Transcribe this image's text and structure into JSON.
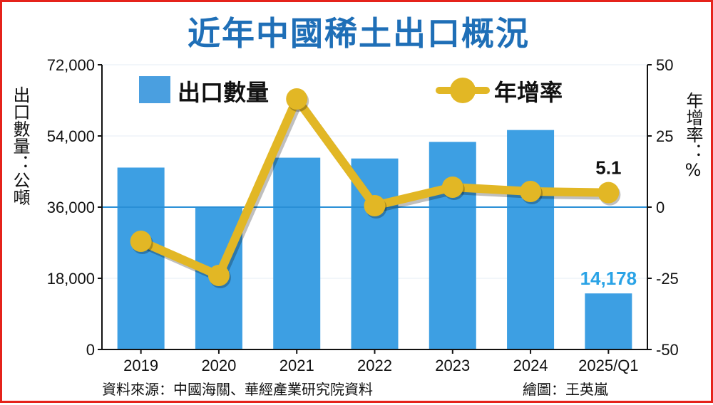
{
  "title": "近年中國稀土出口概況",
  "left_axis_label": "出口數量：公噸",
  "right_axis_label": "年增率：%",
  "legend": {
    "bar": "出口數量",
    "line": "年增率"
  },
  "source": "資料來源：中國海關、華經產業研究院資料",
  "credit": "繪圖：王英嵐",
  "colors": {
    "bar": "#3d9fe3",
    "line": "#e2b725",
    "title": "#1f6fb7",
    "axis": "#2a8fd6",
    "frame": "#e5231b",
    "highlight_label": "#2aa3e6"
  },
  "chart_data": {
    "type": "bar",
    "categories": [
      "2019",
      "2020",
      "2021",
      "2022",
      "2023",
      "2024",
      "2025/Q1"
    ],
    "series": [
      {
        "name": "出口數量",
        "axis": "left",
        "values": [
          46000,
          36000,
          48500,
          48300,
          52500,
          55500,
          14178
        ]
      },
      {
        "name": "年增率",
        "axis": "right",
        "type": "line",
        "values": [
          -12,
          -24,
          38,
          0.5,
          7,
          5.5,
          5.1
        ]
      }
    ],
    "left_axis": {
      "ylim": [
        0,
        72000
      ],
      "ticks": [
        "0",
        "18,000",
        "36,000",
        "54,000",
        "72,000"
      ]
    },
    "right_axis": {
      "ylim": [
        -50,
        50
      ],
      "ticks": [
        "-50",
        "-25",
        "0",
        "25",
        "50"
      ]
    },
    "annotations": [
      {
        "text": "14,178",
        "series": "出口數量",
        "index": 6
      },
      {
        "text": "5.1",
        "series": "年增率",
        "index": 6
      }
    ],
    "reference_line": {
      "axis": "left",
      "value": 36000
    },
    "grid": true
  }
}
